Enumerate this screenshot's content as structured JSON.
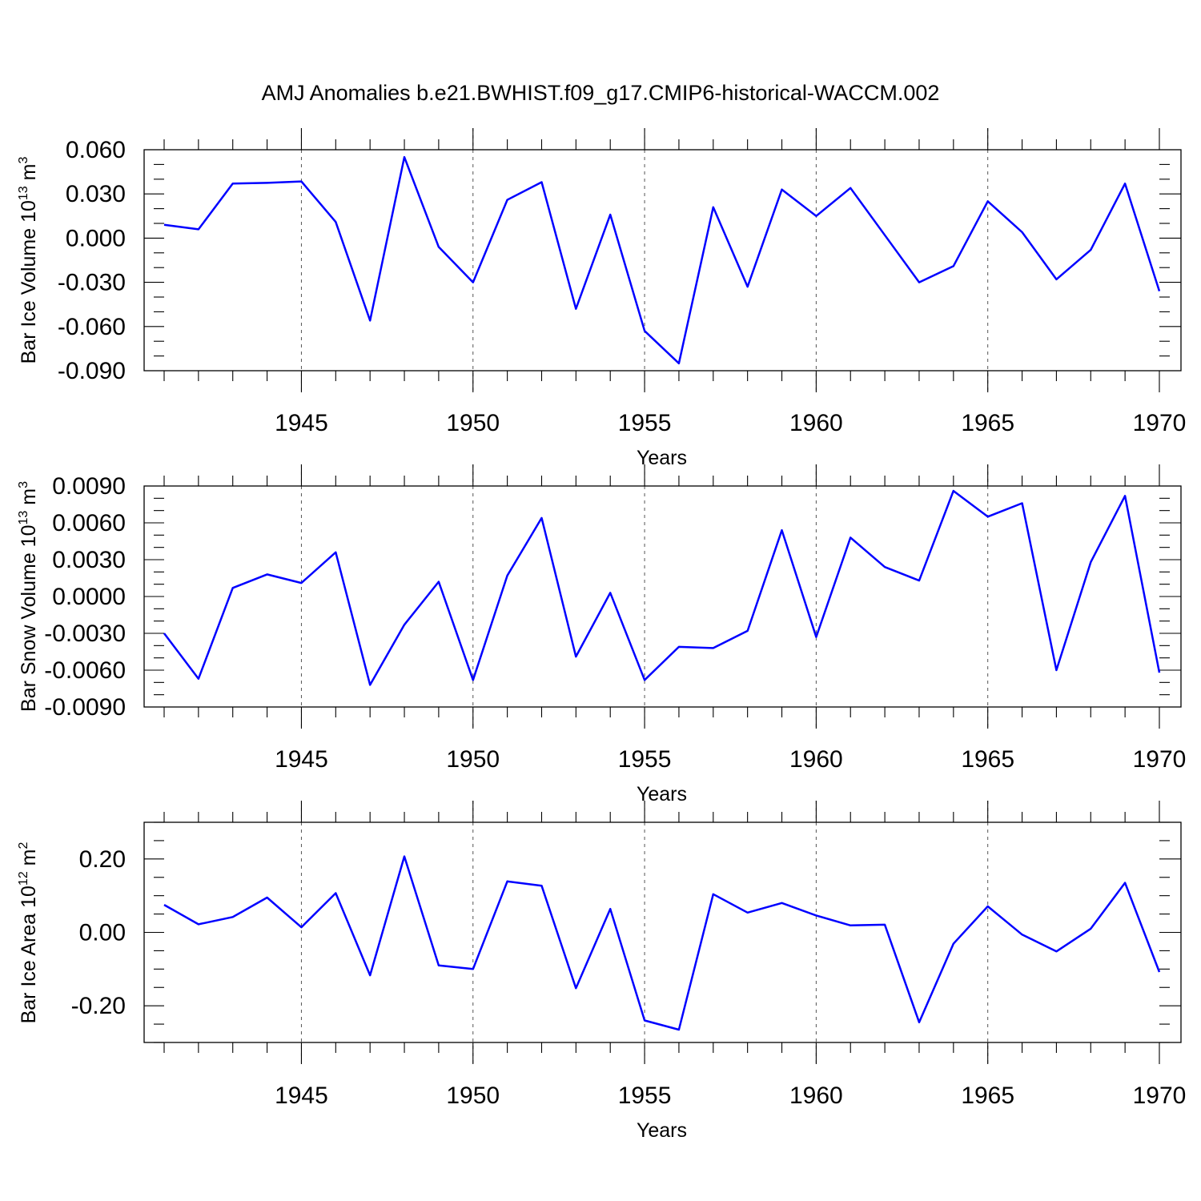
{
  "title": "AMJ Anomalies b.e21.BWHIST.f09_g17.CMIP6-historical-WACCM.002",
  "colors": {
    "line": "#0000ff",
    "axis": "#000000",
    "grid": "#555555",
    "background": "#ffffff"
  },
  "chart_data": [
    {
      "type": "line",
      "ylabel": "Bar Ice Volume 10",
      "ylabel_exp": "13",
      "ylabel_unit": " m",
      "ylabel_unit_exp": "3",
      "xlabel": "Years",
      "xlim": [
        1941,
        1970
      ],
      "ylim": [
        -0.09,
        0.06
      ],
      "yticks": [
        0.06,
        0.03,
        0.0,
        -0.03,
        -0.06,
        -0.09
      ],
      "ytick_labels": [
        "0.060",
        "0.030",
        "0.000",
        "-0.030",
        "-0.060",
        "-0.090"
      ],
      "yminor_step": 0.01,
      "xticks": [
        1945,
        1950,
        1955,
        1960,
        1965,
        1970
      ],
      "xtick_labels": [
        "1945",
        "1950",
        "1955",
        "1960",
        "1965",
        "1970"
      ],
      "grid_x": [
        1945,
        1950,
        1955,
        1960,
        1965,
        1970
      ],
      "x": [
        1941,
        1942,
        1943,
        1944,
        1945,
        1946,
        1947,
        1948,
        1949,
        1950,
        1951,
        1952,
        1953,
        1954,
        1955,
        1956,
        1957,
        1958,
        1959,
        1960,
        1961,
        1962,
        1963,
        1964,
        1965,
        1966,
        1967,
        1968,
        1969,
        1970
      ],
      "values": [
        0.009,
        0.006,
        0.037,
        0.0375,
        0.0385,
        0.011,
        -0.056,
        0.055,
        -0.006,
        -0.03,
        0.026,
        0.038,
        -0.048,
        0.016,
        -0.063,
        -0.085,
        0.021,
        -0.033,
        0.033,
        0.015,
        0.034,
        0.002,
        -0.03,
        -0.019,
        0.025,
        0.004,
        -0.028,
        -0.008,
        0.037,
        -0.036
      ]
    },
    {
      "type": "line",
      "ylabel": "Bar Snow Volume 10",
      "ylabel_exp": "13",
      "ylabel_unit": " m",
      "ylabel_unit_exp": "3",
      "xlabel": "Years",
      "xlim": [
        1941,
        1970
      ],
      "ylim": [
        -0.009,
        0.009
      ],
      "yticks": [
        0.009,
        0.006,
        0.003,
        0.0,
        -0.003,
        -0.006,
        -0.009
      ],
      "ytick_labels": [
        "0.0090",
        "0.0060",
        "0.0030",
        "0.0000",
        "-0.0030",
        "-0.0060",
        "-0.0090"
      ],
      "yminor_step": 0.001,
      "xticks": [
        1945,
        1950,
        1955,
        1960,
        1965,
        1970
      ],
      "xtick_labels": [
        "1945",
        "1950",
        "1955",
        "1960",
        "1965",
        "1970"
      ],
      "grid_x": [
        1945,
        1950,
        1955,
        1960,
        1965,
        1970
      ],
      "x": [
        1941,
        1942,
        1943,
        1944,
        1945,
        1946,
        1947,
        1948,
        1949,
        1950,
        1951,
        1952,
        1953,
        1954,
        1955,
        1956,
        1957,
        1958,
        1959,
        1960,
        1961,
        1962,
        1963,
        1964,
        1965,
        1966,
        1967,
        1968,
        1969,
        1970
      ],
      "values": [
        -0.003,
        -0.0067,
        0.0007,
        0.0018,
        0.0011,
        0.0036,
        -0.0072,
        -0.0023,
        0.0012,
        -0.0068,
        0.0017,
        0.0064,
        -0.0049,
        0.0003,
        -0.0068,
        -0.0041,
        -0.0042,
        -0.0028,
        0.0054,
        -0.0033,
        0.0048,
        0.0024,
        0.0013,
        0.0086,
        0.0065,
        0.0076,
        -0.006,
        0.0028,
        0.0082,
        -0.0062
      ]
    },
    {
      "type": "line",
      "ylabel": "Bar Ice Area 10",
      "ylabel_exp": "12",
      "ylabel_unit": " m",
      "ylabel_unit_exp": "2",
      "xlabel": "Years",
      "xlim": [
        1941,
        1970
      ],
      "ylim": [
        -0.3,
        0.3
      ],
      "yticks": [
        0.2,
        0.0,
        -0.2
      ],
      "ytick_labels": [
        "0.20",
        "0.00",
        "-0.20"
      ],
      "yminor_step": 0.05,
      "xticks": [
        1945,
        1950,
        1955,
        1960,
        1965,
        1970
      ],
      "xtick_labels": [
        "1945",
        "1950",
        "1955",
        "1960",
        "1965",
        "1970"
      ],
      "grid_x": [
        1945,
        1950,
        1955,
        1960,
        1965,
        1970
      ],
      "x": [
        1941,
        1942,
        1943,
        1944,
        1945,
        1946,
        1947,
        1948,
        1949,
        1950,
        1951,
        1952,
        1953,
        1954,
        1955,
        1956,
        1957,
        1958,
        1959,
        1960,
        1961,
        1962,
        1963,
        1964,
        1965,
        1966,
        1967,
        1968,
        1969,
        1970
      ],
      "values": [
        0.075,
        0.022,
        0.042,
        0.095,
        0.014,
        0.107,
        -0.117,
        0.207,
        -0.09,
        -0.1,
        0.139,
        0.127,
        -0.152,
        0.064,
        -0.24,
        -0.265,
        0.104,
        0.054,
        0.08,
        0.046,
        0.019,
        0.021,
        -0.245,
        -0.031,
        0.071,
        -0.006,
        -0.052,
        0.01,
        0.135,
        -0.108
      ]
    }
  ]
}
